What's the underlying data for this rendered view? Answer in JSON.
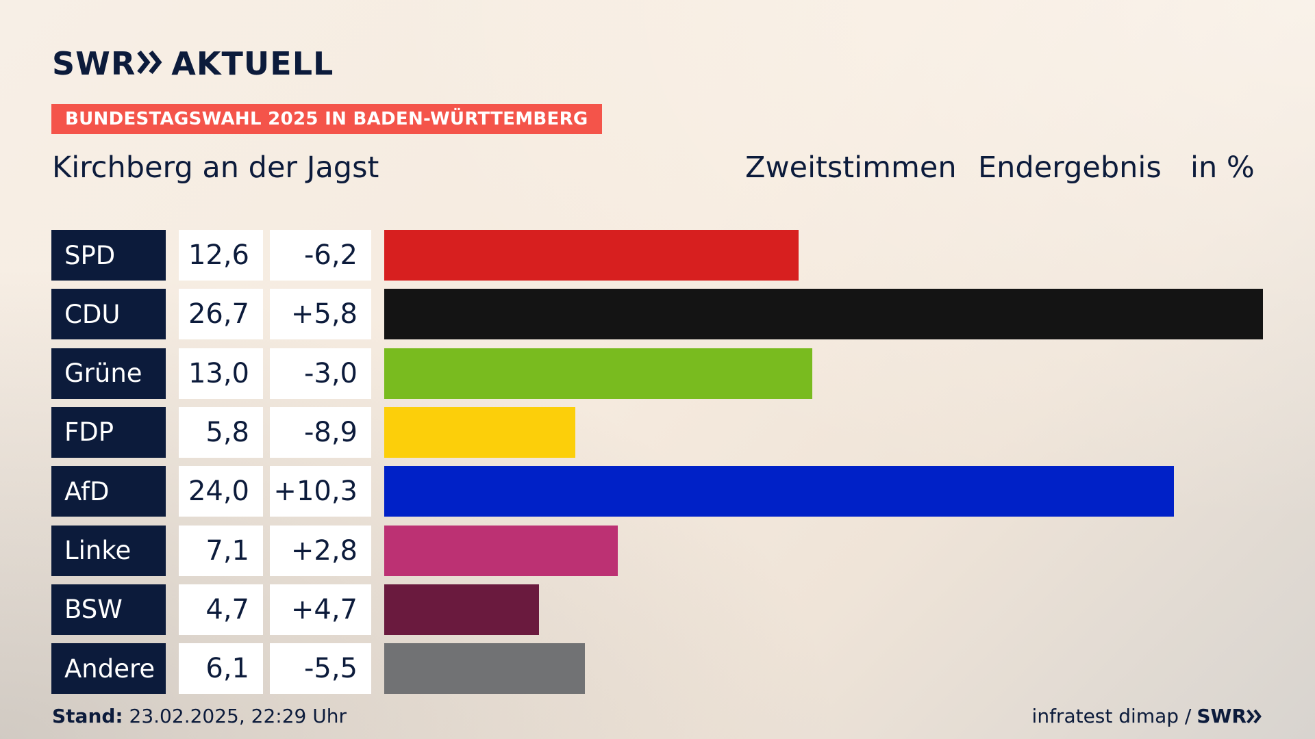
{
  "brand": {
    "logo_left": "SWR",
    "logo_right": "AKTUELL"
  },
  "tag": "BUNDESTAGSWAHL 2025 IN BADEN-WÜRTTEMBERG",
  "place": "Kirchberg an der Jagst",
  "headers": {
    "vote_type": "Zweitstimmen",
    "status": "Endergebnis",
    "unit": "in %"
  },
  "footer": {
    "stand_label": "Stand:",
    "stand_value": "23.02.2025, 22:29 Uhr",
    "source": "infratest dimap /",
    "source_brand": "SWR"
  },
  "chart_data": {
    "type": "bar",
    "orientation": "horizontal",
    "categories": [
      "SPD",
      "CDU",
      "Grüne",
      "FDP",
      "AfD",
      "Linke",
      "BSW",
      "Andere"
    ],
    "values": [
      12.6,
      26.7,
      13.0,
      5.8,
      24.0,
      7.1,
      4.7,
      6.1
    ],
    "value_labels": [
      "12,6",
      "26,7",
      "13,0",
      "5,8",
      "24,0",
      "7,1",
      "4,7",
      "6,1"
    ],
    "diff_labels": [
      "-6,2",
      "+5,8",
      "-3,0",
      "-8,9",
      "+10,3",
      "+2,8",
      "+4,7",
      "-5,5"
    ],
    "diffs": [
      -6.2,
      5.8,
      -3.0,
      -8.9,
      10.3,
      2.8,
      4.7,
      -5.5
    ],
    "colors": [
      "#d71f1f",
      "#141414",
      "#79bb1f",
      "#fccf0a",
      "#0021c7",
      "#bc3173",
      "#6a1a3e",
      "#717274"
    ]
  }
}
